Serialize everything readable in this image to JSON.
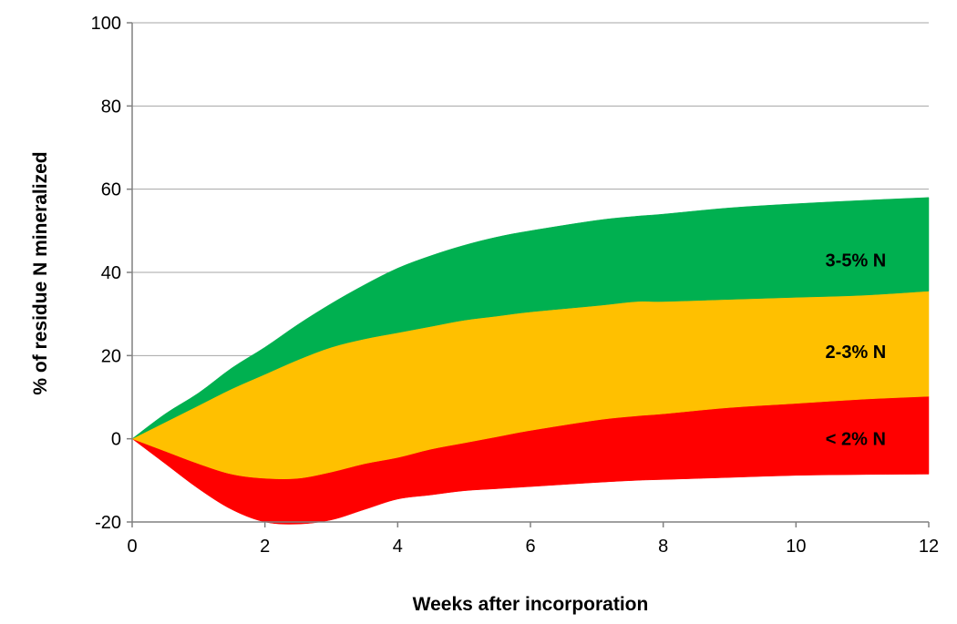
{
  "chart_data": {
    "type": "area",
    "xlabel": "Weeks after incorporation",
    "ylabel": "% of residue N mineralized",
    "xlim": [
      0,
      12
    ],
    "ylim": [
      -20,
      100
    ],
    "x_ticks": [
      0,
      2,
      4,
      6,
      8,
      10,
      12
    ],
    "y_ticks": [
      -20,
      0,
      20,
      40,
      60,
      80,
      100
    ],
    "grid": "horizontal",
    "x": [
      0,
      0.5,
      1,
      1.5,
      2,
      2.5,
      3,
      3.5,
      4,
      4.5,
      5,
      5.5,
      6,
      7,
      7.6,
      8,
      9,
      10,
      11,
      12
    ],
    "series": [
      {
        "name": "< 2% N",
        "color": "#ff0000",
        "lower": [
          0,
          -6,
          -12,
          -17,
          -20,
          -20.5,
          -19.5,
          -17,
          -14.5,
          -13.5,
          -12.5,
          -12,
          -11.5,
          -10.5,
          -10,
          -9.8,
          -9.3,
          -8.8,
          -8.6,
          -8.5
        ],
        "upper": [
          0,
          -3,
          -6,
          -8.5,
          -9.5,
          -9.5,
          -8,
          -6,
          -4.5,
          -2.5,
          -1,
          0.5,
          2,
          4.5,
          5.5,
          6,
          7.5,
          8.5,
          9.5,
          10.2
        ]
      },
      {
        "name": "2-3% N",
        "color": "#ffc000",
        "lower": [
          0,
          -3,
          -6,
          -8.5,
          -9.5,
          -9.5,
          -8,
          -6,
          -4.5,
          -2.5,
          -1,
          0.5,
          2,
          4.5,
          5.5,
          6,
          7.5,
          8.5,
          9.5,
          10.2
        ],
        "upper": [
          0,
          4,
          8,
          12,
          15.5,
          19,
          22,
          24,
          25.5,
          27,
          28.5,
          29.5,
          30.5,
          32,
          33,
          33,
          33.5,
          34,
          34.5,
          35.5
        ]
      },
      {
        "name": "3-5% N",
        "color": "#00b050",
        "lower": [
          0,
          4,
          8,
          12,
          15.5,
          19,
          22,
          24,
          25.5,
          27,
          28.5,
          29.5,
          30.5,
          32,
          33,
          33,
          33.5,
          34,
          34.5,
          35.5
        ],
        "upper": [
          0,
          6,
          11,
          17,
          22,
          27.5,
          32.5,
          37,
          41,
          44,
          46.5,
          48.5,
          50,
          52.5,
          53.5,
          54,
          55.5,
          56.5,
          57.3,
          58
        ]
      }
    ],
    "band_labels": [
      {
        "text": "3-5% N",
        "x": 10.9,
        "y": 43
      },
      {
        "text": "2-3% N",
        "x": 10.9,
        "y": 21
      },
      {
        "text": "< 2% N",
        "x": 10.9,
        "y": 0
      }
    ],
    "colors": {
      "grid": "#a6a6a6",
      "axis": "#808080"
    }
  }
}
